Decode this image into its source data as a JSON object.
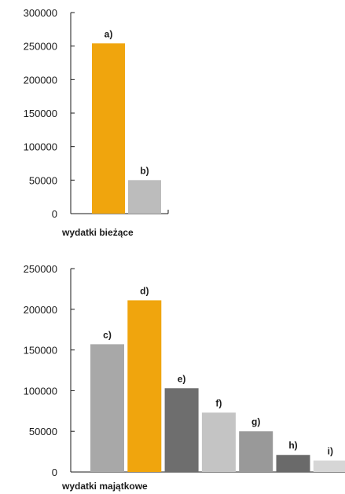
{
  "chart_data": [
    {
      "type": "bar",
      "categories": [
        "a)",
        "b)"
      ],
      "values": [
        254000,
        50000
      ],
      "colors": [
        "#f0a50d",
        "#bcbcbc"
      ],
      "xlabel": "wydatki bieżące",
      "ylim": [
        0,
        300000
      ],
      "yticks": [
        {
          "value": 0,
          "label": "0"
        },
        {
          "value": 50000,
          "label": "50000"
        },
        {
          "value": 100000,
          "label": "100000"
        },
        {
          "value": 150000,
          "label": "150000"
        },
        {
          "value": 200000,
          "label": "200000"
        },
        {
          "value": 250000,
          "label": "250000"
        },
        {
          "value": 300000,
          "label": "300000"
        }
      ],
      "grid": false
    },
    {
      "type": "bar",
      "categories": [
        "c)",
        "d)",
        "e)",
        "f)",
        "g)",
        "h)",
        "i)"
      ],
      "values": [
        157000,
        211000,
        103000,
        73000,
        50000,
        21000,
        14000
      ],
      "colors": [
        "#a8a8a8",
        "#f0a50d",
        "#6e6e6e",
        "#c4c4c4",
        "#999999",
        "#6a6a6a",
        "#d6d6d6"
      ],
      "xlabel": "wydatki majątkowe",
      "ylim": [
        0,
        250000
      ],
      "yticks": [
        {
          "value": 0,
          "label": "0"
        },
        {
          "value": 50000,
          "label": "50000"
        },
        {
          "value": 100000,
          "label": "100000"
        },
        {
          "value": 150000,
          "label": "150000"
        },
        {
          "value": 200000,
          "label": "200000"
        },
        {
          "value": 250000,
          "label": "250000"
        }
      ],
      "grid": false
    }
  ]
}
